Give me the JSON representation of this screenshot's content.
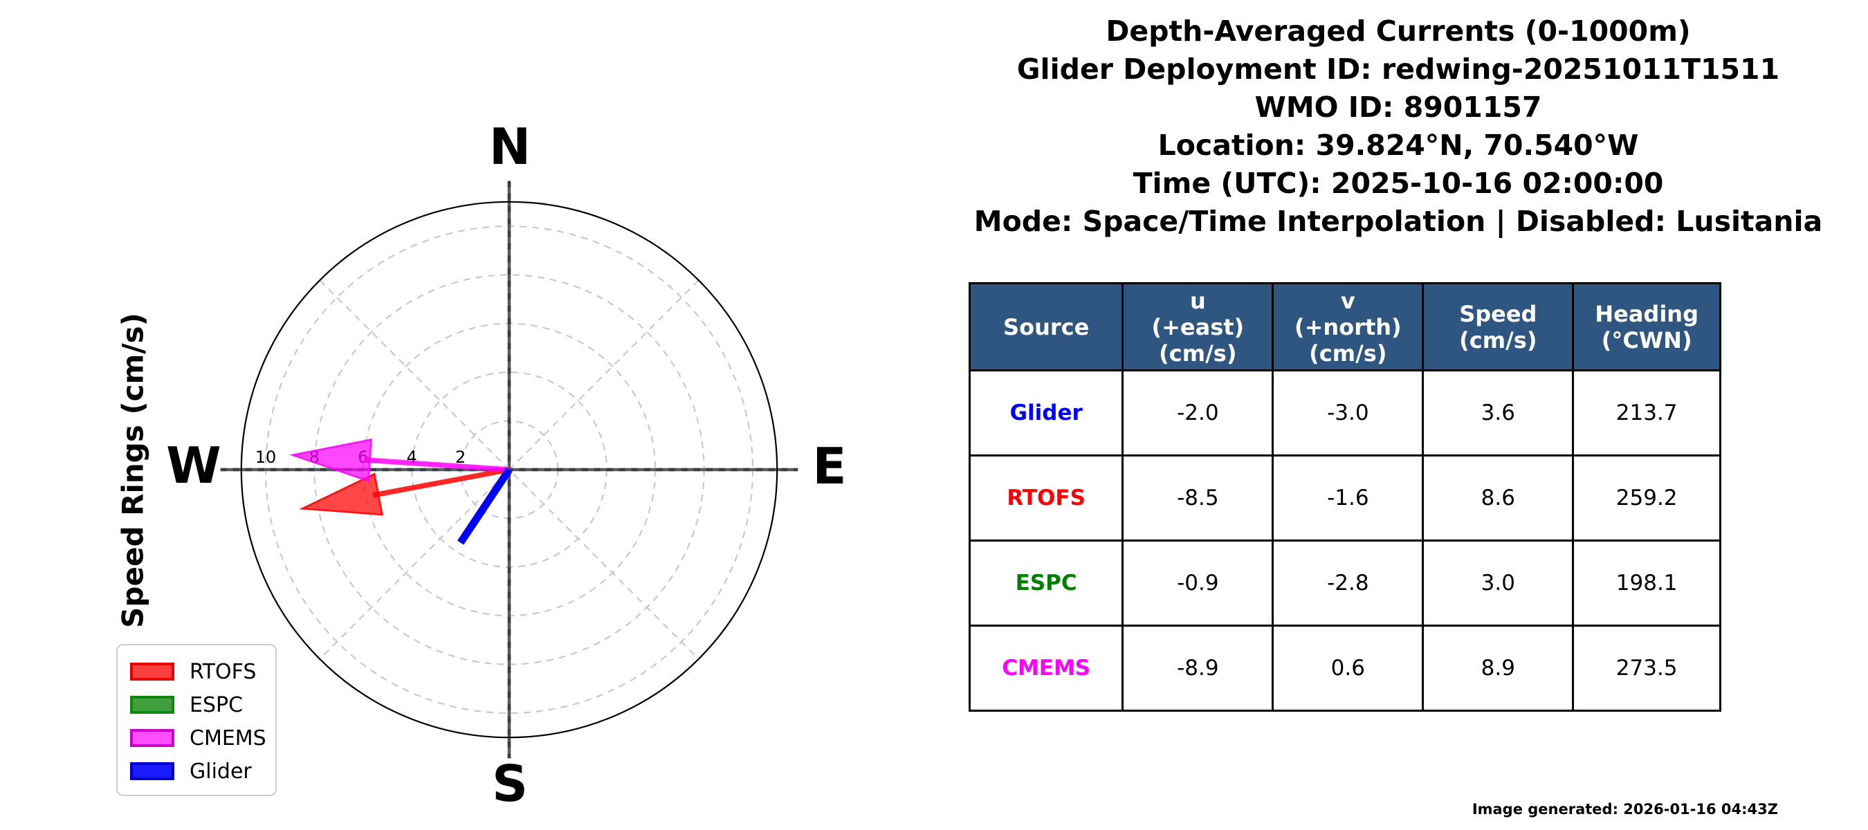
{
  "header_block": {
    "line1": "Depth-Averaged Currents (0-1000m)",
    "line2": "Glider Deployment ID: redwing-20251011T1511",
    "line3": "WMO ID: 8901157",
    "line4": "Location: 39.824°N, 70.540°W",
    "line5": "Time (UTC): 2025-10-16 02:00:00",
    "line6": "Mode: Space/Time Interpolation | Disabled: Lusitania"
  },
  "chart_data": {
    "type": "polar_vector_compass",
    "ylabel": "Speed Rings (cm/s)",
    "compass": {
      "north": "N",
      "east": "E",
      "south": "S",
      "west": "W"
    },
    "ring_values": [
      2,
      4,
      6,
      8,
      10
    ],
    "rmax": 11,
    "ring_units": "cm/s",
    "grid": "dashed gray rings every 2 cm/s with 45° dashed spokes; dark solid N-S and E-W crosshair",
    "vectors": [
      {
        "name": "Glider",
        "color": "#0000ff",
        "u": -2.0,
        "v": -3.0,
        "speed": 3.6,
        "heading_cwn": 213.7,
        "style": "line",
        "arrow_visible": true,
        "z": 3
      },
      {
        "name": "RTOFS",
        "color": "#ff0000",
        "u": -8.5,
        "v": -1.6,
        "speed": 8.6,
        "heading_cwn": 259.2,
        "style": "quiver",
        "arrow_visible": true,
        "z": 1
      },
      {
        "name": "ESPC",
        "color": "#008000",
        "u": -0.9,
        "v": -2.8,
        "speed": 3.0,
        "heading_cwn": 198.1,
        "style": "quiver",
        "arrow_visible": false,
        "z": 0
      },
      {
        "name": "CMEMS",
        "color": "#ff00ff",
        "u": -8.9,
        "v": 0.6,
        "speed": 8.9,
        "heading_cwn": 273.5,
        "style": "quiver",
        "arrow_visible": true,
        "z": 2
      }
    ],
    "legend": [
      {
        "label": "RTOFS",
        "color": "#e60000",
        "fill": "#ff4040"
      },
      {
        "label": "ESPC",
        "color": "#0d8a0d",
        "fill": "#40a040"
      },
      {
        "label": "CMEMS",
        "color": "#cc00cc",
        "fill": "#ff4dff"
      },
      {
        "label": "Glider",
        "color": "#0000cc",
        "fill": "#1a1aff"
      }
    ],
    "legend_position": "lower left"
  },
  "table": {
    "header_bg": "#2f5680",
    "headers": {
      "source": {
        "l1": "Source",
        "l2": "",
        "l3": ""
      },
      "u": {
        "l1": "u",
        "l2": "(+east)",
        "l3": "(cm/s)"
      },
      "v": {
        "l1": "v",
        "l2": "(+north)",
        "l3": "(cm/s)"
      },
      "speed": {
        "l1": "Speed",
        "l2": "(cm/s)",
        "l3": ""
      },
      "heading": {
        "l1": "Heading",
        "l2": "(°CWN)",
        "l3": ""
      }
    },
    "rows": [
      {
        "source": "Glider",
        "color": "#0000ff",
        "u": "-2.0",
        "v": "-3.0",
        "speed": "3.6",
        "heading": "213.7"
      },
      {
        "source": "RTOFS",
        "color": "#ff0000",
        "u": "-8.5",
        "v": "-1.6",
        "speed": "8.6",
        "heading": "259.2"
      },
      {
        "source": "ESPC",
        "color": "#008000",
        "u": "-0.9",
        "v": "-2.8",
        "speed": "3.0",
        "heading": "198.1"
      },
      {
        "source": "CMEMS",
        "color": "#ff00ff",
        "u": "-8.9",
        "v": "0.6",
        "speed": "8.9",
        "heading": "273.5"
      }
    ]
  },
  "footer": {
    "generated": "Image generated: 2026-01-16 04:43Z"
  }
}
